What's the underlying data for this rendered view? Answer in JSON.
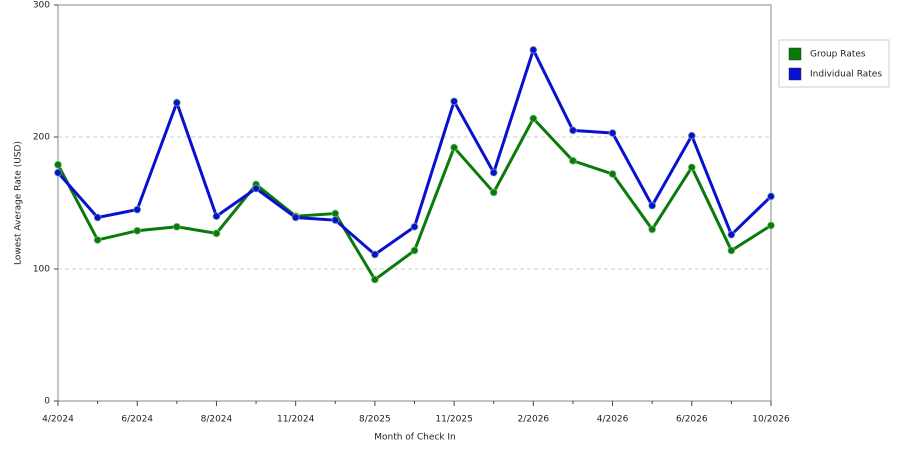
{
  "chart_data": {
    "type": "line",
    "x_label": "Month of Check In",
    "y_label": "Lowest Average Rate (USD)",
    "categories": [
      "4/2024",
      null,
      "6/2024",
      null,
      "8/2024",
      null,
      "11/2024",
      null,
      "8/2025",
      null,
      "11/2025",
      null,
      "2/2026",
      null,
      "4/2026",
      null,
      "6/2026",
      null,
      "10/2026"
    ],
    "series": [
      {
        "name": "Group Rates",
        "color": "#0a7a0a",
        "values": [
          179,
          122,
          129,
          132,
          127,
          164,
          140,
          142,
          92,
          114,
          192,
          158,
          214,
          182,
          172,
          130,
          177,
          114,
          133
        ]
      },
      {
        "name": "Individual Rates",
        "color": "#0a10d0",
        "values": [
          173,
          139,
          145,
          226,
          140,
          161,
          139,
          137,
          111,
          132,
          227,
          173,
          266,
          205,
          203,
          148,
          201,
          126,
          155
        ]
      }
    ],
    "ylim": [
      0,
      300
    ],
    "yticks": [
      0,
      100,
      200,
      300
    ],
    "grid": true,
    "legend": "right"
  }
}
